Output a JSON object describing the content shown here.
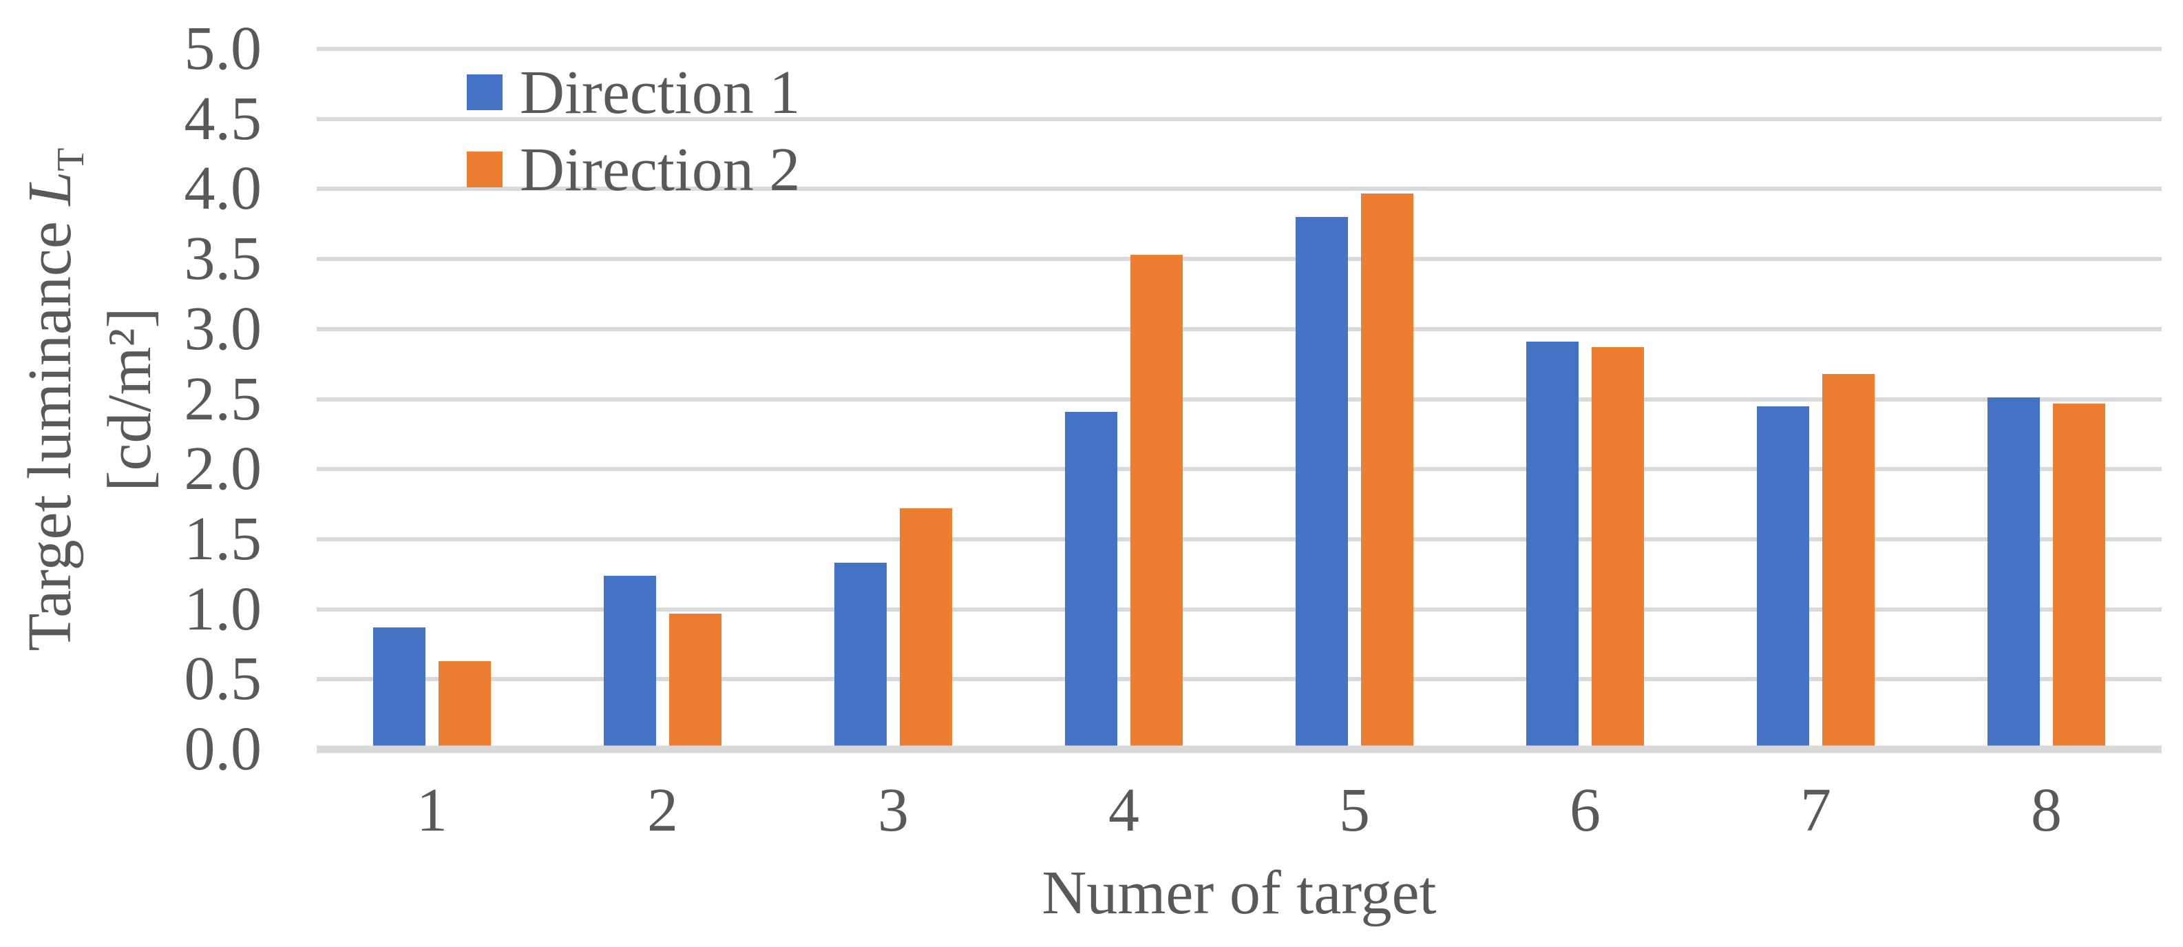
{
  "chart_data": {
    "type": "bar",
    "title": "",
    "categories": [
      "1",
      "2",
      "3",
      "4",
      "5",
      "6",
      "7",
      "8"
    ],
    "series": [
      {
        "name": "Direction 1",
        "color": "#4472C4",
        "values": [
          0.87,
          1.24,
          1.33,
          2.41,
          3.8,
          2.91,
          2.45,
          2.51
        ]
      },
      {
        "name": "Direction 2",
        "color": "#ED7D31",
        "values": [
          0.63,
          0.97,
          1.72,
          3.53,
          3.97,
          2.87,
          2.68,
          2.47
        ]
      }
    ],
    "xlabel": "Numer of target",
    "ylabel": {
      "line1_text": "Target luminance ",
      "line1_var": "L",
      "line1_sub": "T",
      "line2": "[cd/m²]"
    },
    "ylim": [
      0,
      5
    ],
    "ytick_step": 0.5,
    "yticks": [
      "0.0",
      "0.5",
      "1.0",
      "1.5",
      "2.0",
      "2.5",
      "3.0",
      "3.5",
      "4.0",
      "4.5",
      "5.0"
    ],
    "grid": true,
    "legend_position": "top-left-inside",
    "colors": {
      "gridline": "#D9D9D9",
      "axis_line": "#D9D9D9",
      "text": "#595959",
      "background": "#FFFFFF"
    }
  }
}
